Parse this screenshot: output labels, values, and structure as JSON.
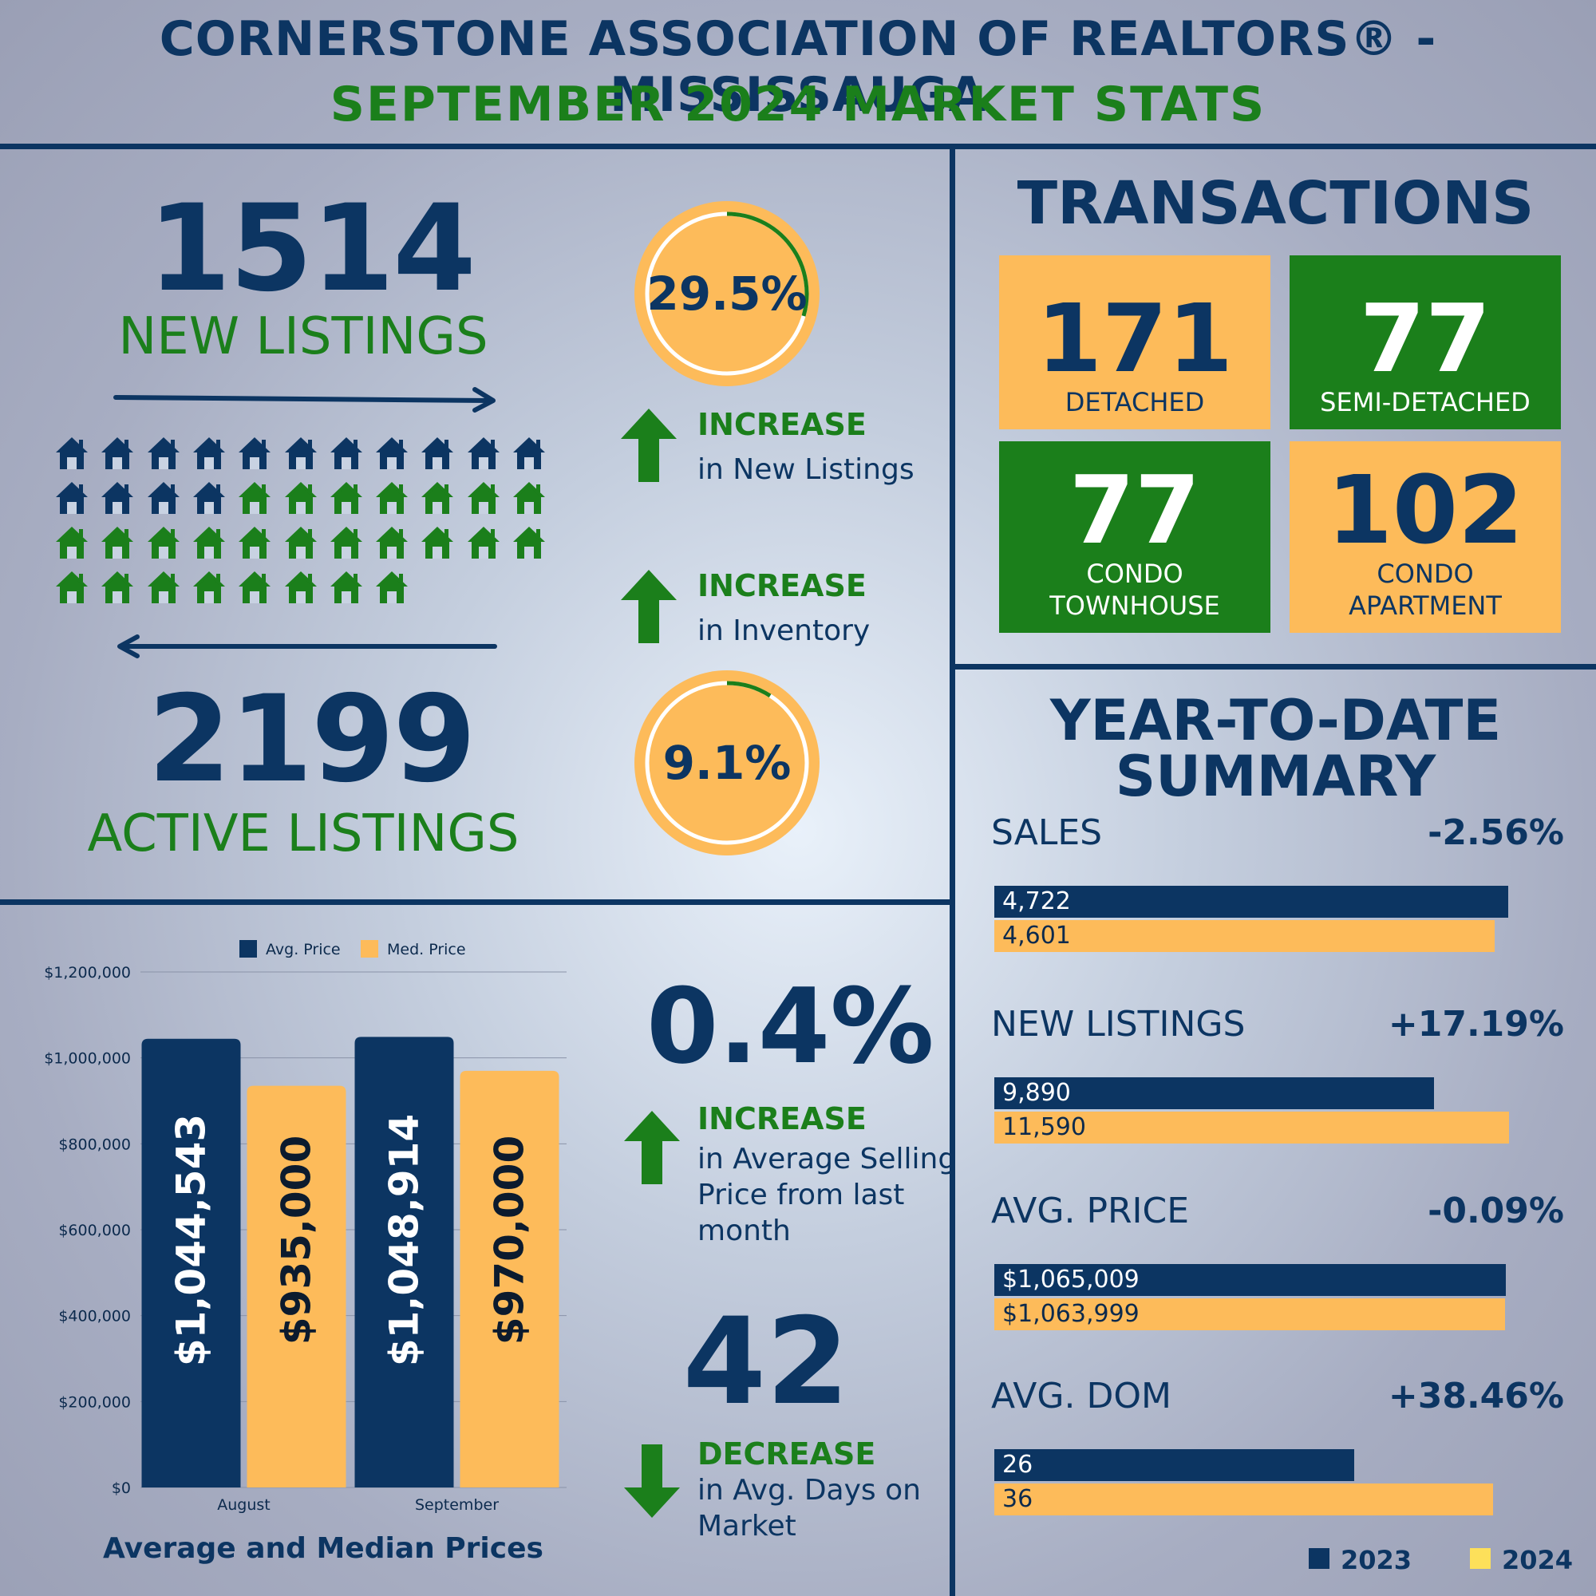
{
  "header": {
    "title_line1": "CORNERSTONE ASSOCIATION OF REALTORS® - MISSISSAUGA",
    "title_line2": "SEPTEMBER 2024 MARKET STATS"
  },
  "listings": {
    "new_value": "1514",
    "new_label": "NEW LISTINGS",
    "active_value": "2199",
    "active_label": "ACTIVE LISTINGS",
    "house_icons_total": 41,
    "house_icons_navy": 15
  },
  "increases": {
    "new_listings_pct": "29.5%",
    "new_listings_ring_fraction": 0.295,
    "new_listings_head": "INCREASE",
    "new_listings_sub": "in New Listings",
    "inventory_head": "INCREASE",
    "inventory_sub": "in Inventory",
    "inventory_pct": "9.1%",
    "inventory_ring_fraction": 0.091,
    "avg_price_pct": "0.4%",
    "avg_price_head": "INCREASE",
    "avg_price_sub": [
      "in Average Selling",
      "Price from last",
      "month"
    ],
    "dom_value": "42",
    "dom_head": "DECREASE",
    "dom_sub": [
      "in Avg. Days on",
      "Market"
    ]
  },
  "transactions": {
    "title": "TRANSACTIONS",
    "items": [
      {
        "value": "171",
        "label": [
          "DETACHED"
        ],
        "style": "orange"
      },
      {
        "value": "77",
        "label": [
          "SEMI-DETACHED"
        ],
        "style": "green"
      },
      {
        "value": "77",
        "label": [
          "CONDO",
          "TOWNHOUSE"
        ],
        "style": "green"
      },
      {
        "value": "102",
        "label": [
          "CONDO",
          "APARTMENT"
        ],
        "style": "orange"
      }
    ]
  },
  "ytd": {
    "title": [
      "YEAR-TO-DATE",
      "SUMMARY"
    ],
    "rows": [
      {
        "label": "SALES",
        "pct": "-2.56%",
        "v2023": 4722,
        "v2024": 4601,
        "t2023": "4,722",
        "t2024": "4,601",
        "max": 4900
      },
      {
        "label": "NEW LISTINGS",
        "pct": "+17.19%",
        "v2023": 9890,
        "v2024": 11590,
        "t2023": "9,890",
        "t2024": "11,590",
        "max": 12000
      },
      {
        "label": "AVG. PRICE",
        "pct": "-0.09%",
        "v2023": 1065009,
        "v2024": 1063999,
        "t2023": "$1,065,009",
        "t2024": "$1,063,999",
        "max": 1110000
      },
      {
        "label": "AVG. DOM",
        "pct": "+38.46%",
        "v2023": 26,
        "v2024": 36,
        "t2023": "26",
        "t2024": "36",
        "max": 38.5
      }
    ],
    "legend": [
      "2023",
      "2024"
    ]
  },
  "colors": {
    "navy": "#0c3562",
    "orange": "#fdbb5a",
    "green": "#1b7f1b"
  },
  "chart_data": {
    "type": "bar",
    "title": "Average and Median Prices",
    "categories": [
      "August",
      "September"
    ],
    "series": [
      {
        "name": "Avg. Price",
        "values": [
          1044543,
          1048914
        ],
        "labels": [
          "$1,044,543",
          "$1,048,914"
        ],
        "color": "#0c3562"
      },
      {
        "name": "Med. Price",
        "values": [
          935000,
          970000
        ],
        "labels": [
          "$935,000",
          "$970,000"
        ],
        "color": "#fdbb5a"
      }
    ],
    "ylim": [
      0,
      1200000
    ],
    "yticks": [
      0,
      200000,
      400000,
      600000,
      800000,
      1000000,
      1200000
    ],
    "ytick_labels": [
      "$0",
      "$200,000",
      "$400,000",
      "$600,000",
      "$800,000",
      "$1,000,000",
      "$1,200,000"
    ],
    "grid": true,
    "legend_position": "top"
  }
}
